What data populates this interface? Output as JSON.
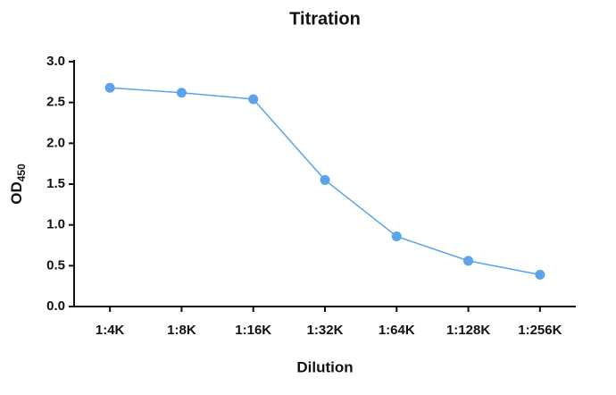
{
  "chart_data": {
    "type": "line",
    "title": "Titration",
    "x_label": "Dilution",
    "y_label": {
      "text": "OD",
      "subscript": "450"
    },
    "categories": [
      "1:4K",
      "1:8K",
      "1:16K",
      "1:32K",
      "1:64K",
      "1:128K",
      "1:256K"
    ],
    "values": [
      2.68,
      2.62,
      2.54,
      1.55,
      0.86,
      0.56,
      0.39
    ],
    "color": "#5ba3ea",
    "ylim": [
      0,
      3
    ],
    "yticks": [
      {
        "value": 0,
        "label": "0.0"
      },
      0.5,
      {
        "value": 1,
        "label": "1.0"
      },
      1.5,
      {
        "value": 2,
        "label": "2.0"
      },
      2.5,
      {
        "value": 3,
        "label": "3.0"
      }
    ]
  }
}
